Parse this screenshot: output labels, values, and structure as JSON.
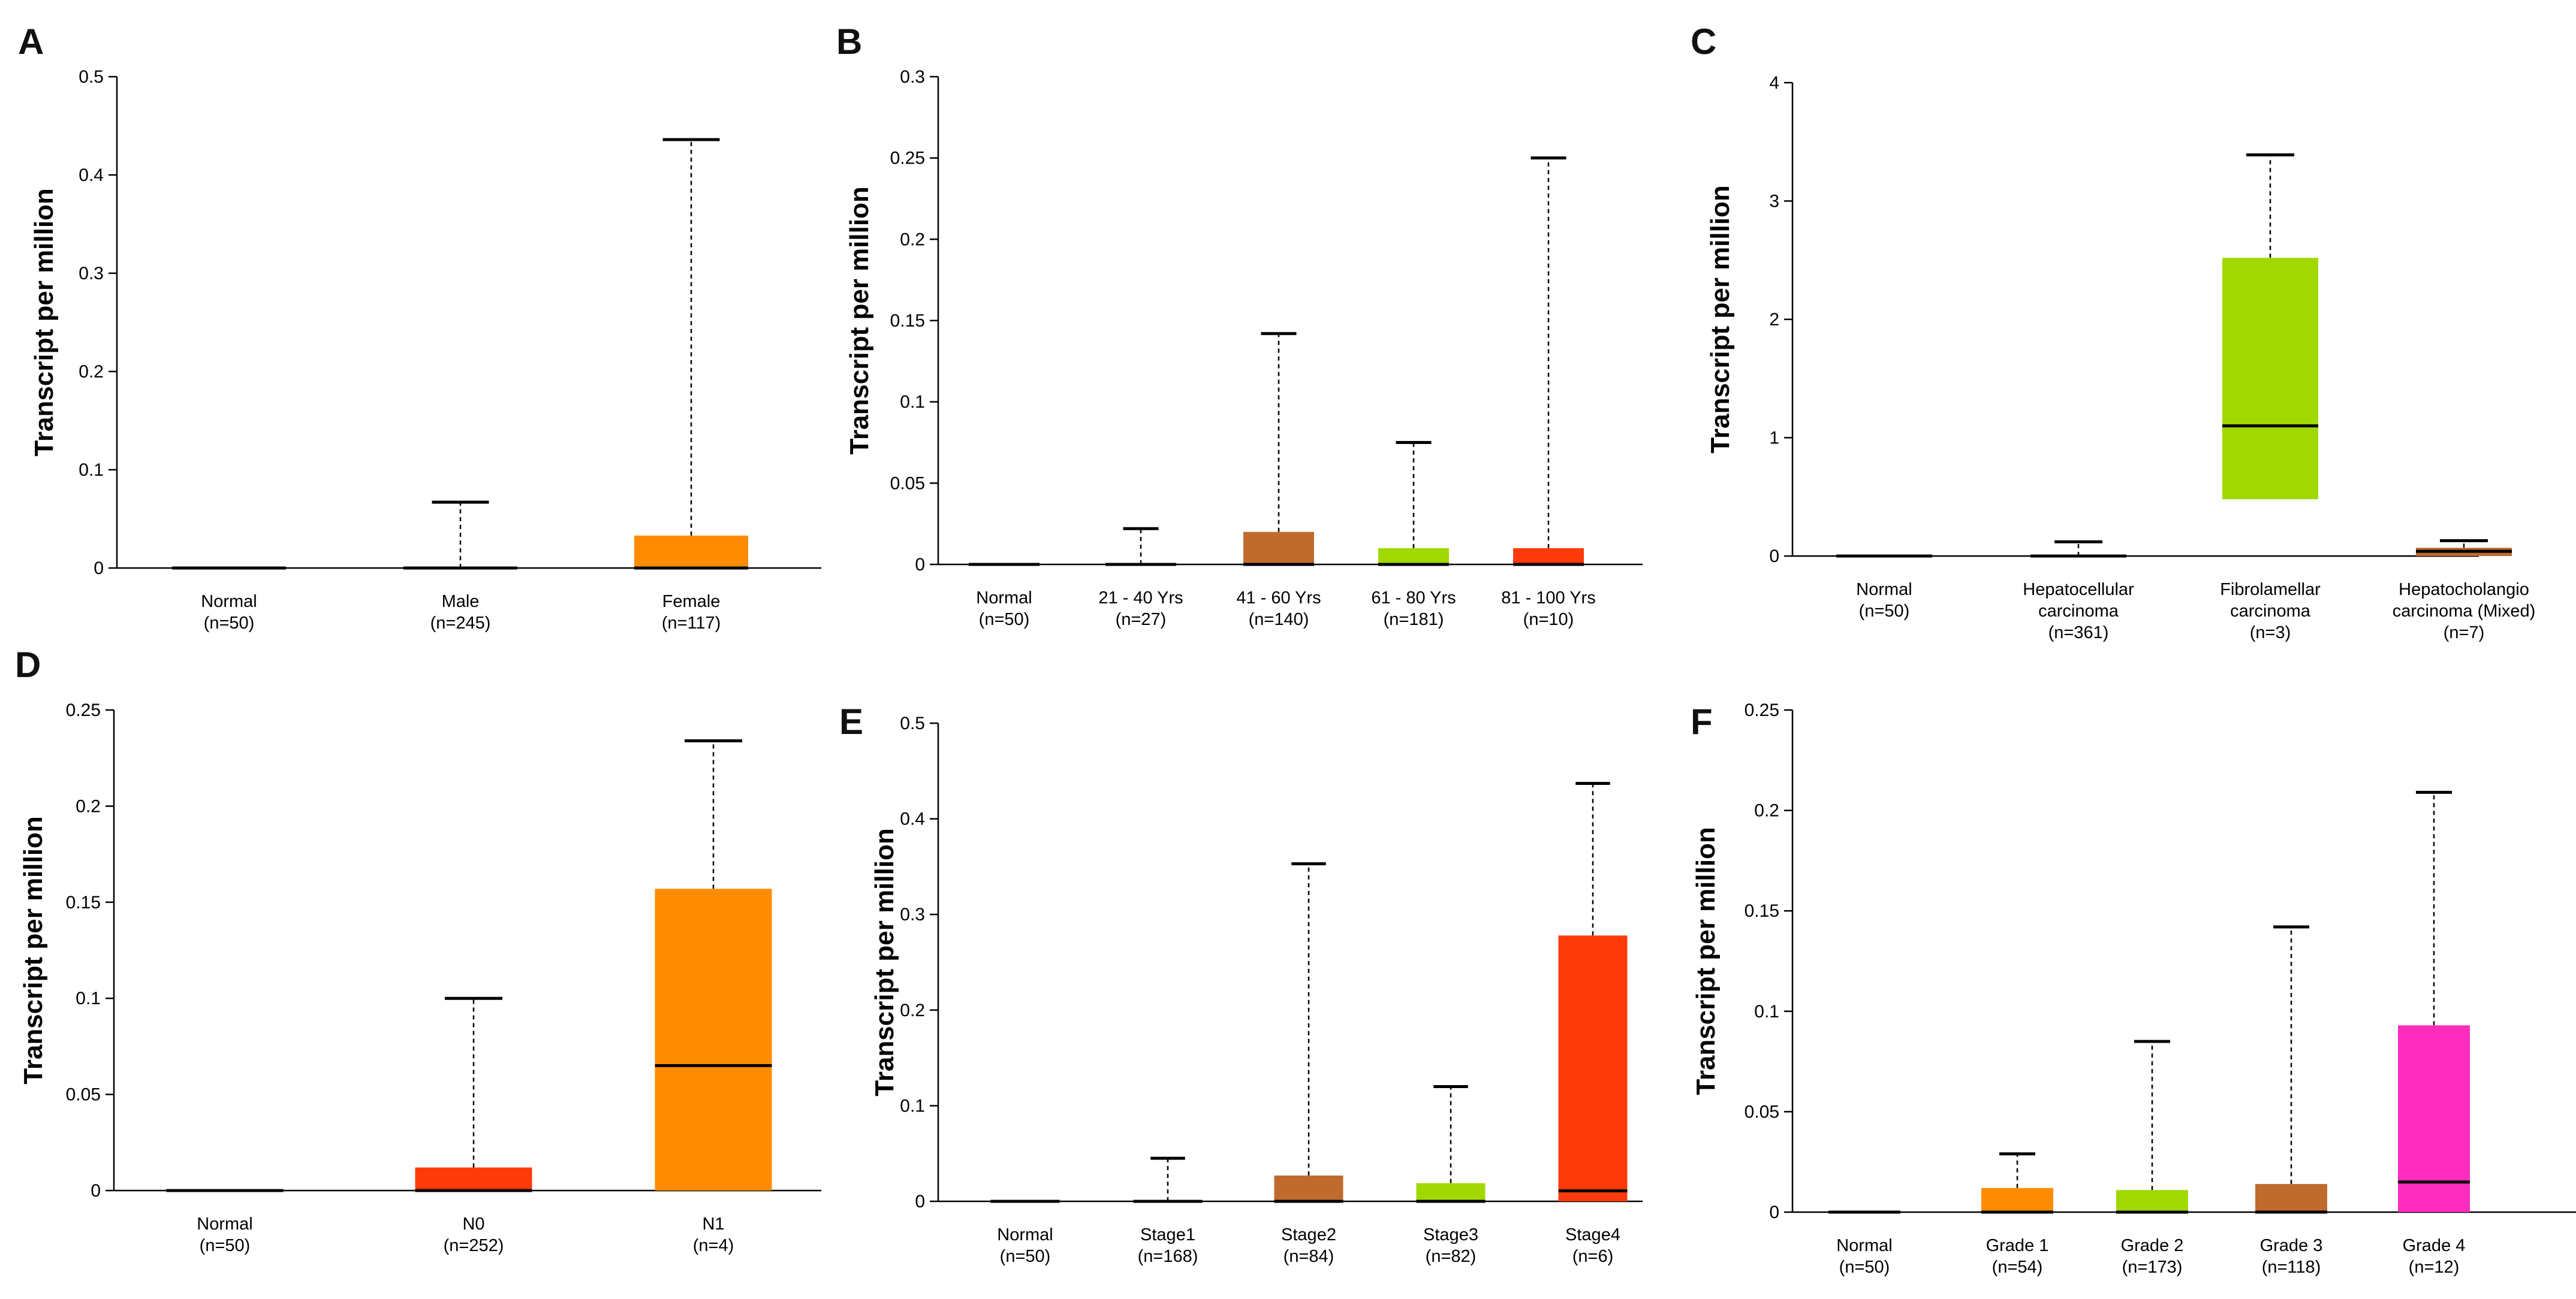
{
  "chart_data": [
    {
      "panel": "A",
      "type": "boxplot",
      "ylabel": "Transcript per million",
      "yticks": [
        "0",
        "0.1",
        "0.2",
        "0.3",
        "0.4",
        "0.5"
      ],
      "ylim": [
        0,
        0.5
      ],
      "groups": [
        {
          "label": [
            "Normal",
            "(n=50)"
          ],
          "color": "#000000",
          "min": 0,
          "q1": 0,
          "median": 0,
          "q3": 0,
          "max": 0
        },
        {
          "label": [
            "Male",
            "(n=245)"
          ],
          "color": "#000000",
          "min": 0,
          "q1": 0,
          "median": 0,
          "q3": 0,
          "max": 0.067
        },
        {
          "label": [
            "Female",
            "(n=117)"
          ],
          "color": "#FF8C00",
          "min": 0,
          "q1": 0,
          "median": 0,
          "q3": 0.033,
          "max": 0.436
        }
      ]
    },
    {
      "panel": "B",
      "type": "boxplot",
      "ylabel": "Transcript per million",
      "yticks": [
        "0",
        "0.05",
        "0.1",
        "0.15",
        "0.2",
        "0.25",
        "0.3"
      ],
      "ylim": [
        0,
        0.3
      ],
      "groups": [
        {
          "label": [
            "Normal",
            "(n=50)"
          ],
          "color": "#000000",
          "min": 0,
          "q1": 0,
          "median": 0,
          "q3": 0,
          "max": 0
        },
        {
          "label": [
            "21 - 40 Yrs",
            "(n=27)"
          ],
          "color": "#000000",
          "min": 0,
          "q1": 0,
          "median": 0,
          "q3": 0,
          "max": 0.022
        },
        {
          "label": [
            "41 - 60 Yrs",
            "(n=140)"
          ],
          "color": "#BF6B2E",
          "min": 0,
          "q1": 0,
          "median": 0,
          "q3": 0.02,
          "max": 0.142
        },
        {
          "label": [
            "61 - 80 Yrs",
            "(n=181)"
          ],
          "color": "#A0D800",
          "min": 0,
          "q1": 0,
          "median": 0,
          "q3": 0.01,
          "max": 0.075
        },
        {
          "label": [
            "81 - 100 Yrs",
            "(n=10)"
          ],
          "color": "#FF3A0A",
          "min": 0,
          "q1": 0,
          "median": 0,
          "q3": 0.01,
          "max": 0.25
        }
      ]
    },
    {
      "panel": "C",
      "type": "boxplot",
      "ylabel": "Transcript per million",
      "yticks": [
        "0",
        "1",
        "2",
        "3",
        "4"
      ],
      "ylim": [
        0,
        4
      ],
      "groups": [
        {
          "label": [
            "Normal",
            "(n=50)"
          ],
          "color": "#000000",
          "min": 0,
          "q1": 0,
          "median": 0,
          "q3": 0,
          "max": 0
        },
        {
          "label": [
            "Hepatocellular",
            "carcinoma",
            "(n=361)"
          ],
          "color": "#000000",
          "min": 0,
          "q1": 0,
          "median": 0,
          "q3": 0,
          "max": 0.12
        },
        {
          "label": [
            "Fibrolamellar",
            "carcinoma",
            "(n=3)"
          ],
          "color": "#A0D800",
          "min": 0,
          "q1": 0.48,
          "median": 1.1,
          "q3": 2.52,
          "max": 3.39
        },
        {
          "label": [
            "Hepatocholangio",
            "carcinoma (Mixed)",
            "(n=7)"
          ],
          "color": "#BF6B2E",
          "min": 0,
          "q1": 0,
          "median": 0.04,
          "q3": 0.07,
          "max": 0.13
        }
      ]
    },
    {
      "panel": "D",
      "type": "boxplot",
      "ylabel": "Transcript per million",
      "yticks": [
        "0",
        "0.05",
        "0.1",
        "0.15",
        "0.2",
        "0.25"
      ],
      "ylim": [
        0,
        0.25
      ],
      "groups": [
        {
          "label": [
            "Normal",
            "(n=50)"
          ],
          "color": "#000000",
          "min": 0,
          "q1": 0,
          "median": 0,
          "q3": 0,
          "max": 0
        },
        {
          "label": [
            "N0",
            "(n=252)"
          ],
          "color": "#FF3A0A",
          "min": 0,
          "q1": 0,
          "median": 0,
          "q3": 0.012,
          "max": 0.1
        },
        {
          "label": [
            "N1",
            "(n=4)"
          ],
          "color": "#FF8C00",
          "min": 0,
          "q1": 0,
          "median": 0.065,
          "q3": 0.157,
          "max": 0.234
        }
      ]
    },
    {
      "panel": "E",
      "type": "boxplot",
      "ylabel": "Transcript per million",
      "yticks": [
        "0",
        "0.1",
        "0.2",
        "0.3",
        "0.4",
        "0.5"
      ],
      "ylim": [
        0,
        0.5
      ],
      "groups": [
        {
          "label": [
            "Normal",
            "(n=50)"
          ],
          "color": "#000000",
          "min": 0,
          "q1": 0,
          "median": 0,
          "q3": 0,
          "max": 0
        },
        {
          "label": [
            "Stage1",
            "(n=168)"
          ],
          "color": "#000000",
          "min": 0,
          "q1": 0,
          "median": 0,
          "q3": 0,
          "max": 0.045
        },
        {
          "label": [
            "Stage2",
            "(n=84)"
          ],
          "color": "#BF6B2E",
          "min": 0,
          "q1": 0,
          "median": 0,
          "q3": 0.027,
          "max": 0.353
        },
        {
          "label": [
            "Stage3",
            "(n=82)"
          ],
          "color": "#A0D800",
          "min": 0,
          "q1": 0,
          "median": 0,
          "q3": 0.019,
          "max": 0.12
        },
        {
          "label": [
            "Stage4",
            "(n=6)"
          ],
          "color": "#FF3A0A",
          "min": 0,
          "q1": 0,
          "median": 0.011,
          "q3": 0.278,
          "max": 0.437
        }
      ]
    },
    {
      "panel": "F",
      "type": "boxplot",
      "ylabel": "Transcript per million",
      "yticks": [
        "0",
        "0.05",
        "0.1",
        "0.15",
        "0.2",
        "0.25"
      ],
      "ylim": [
        0,
        0.25
      ],
      "groups": [
        {
          "label": [
            "Normal",
            "(n=50)"
          ],
          "color": "#000000",
          "min": 0,
          "q1": 0,
          "median": 0,
          "q3": 0,
          "max": 0
        },
        {
          "label": [
            "Grade 1",
            "(n=54)"
          ],
          "color": "#FF8C00",
          "min": 0,
          "q1": 0,
          "median": 0,
          "q3": 0.012,
          "max": 0.029
        },
        {
          "label": [
            "Grade 2",
            "(n=173)"
          ],
          "color": "#A0D800",
          "min": 0,
          "q1": 0,
          "median": 0,
          "q3": 0.011,
          "max": 0.085
        },
        {
          "label": [
            "Grade 3",
            "(n=118)"
          ],
          "color": "#BF6B2E",
          "min": 0,
          "q1": 0,
          "median": 0,
          "q3": 0.014,
          "max": 0.142
        },
        {
          "label": [
            "Grade 4",
            "(n=12)"
          ],
          "color": "#FF2DBE",
          "min": 0,
          "q1": 0,
          "median": 0.015,
          "q3": 0.093,
          "max": 0.209
        }
      ]
    }
  ]
}
